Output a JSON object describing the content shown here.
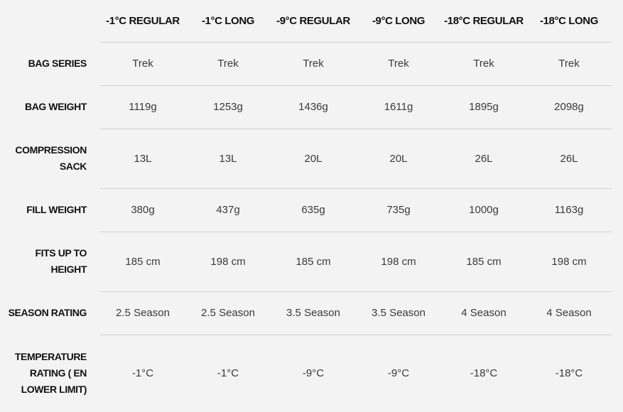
{
  "table": {
    "columns": [
      "-1°C REGULAR",
      "-1°C LONG",
      "-9°C REGULAR",
      "-9°C LONG",
      "-18°C REGULAR",
      "-18°C LONG"
    ],
    "rows": [
      {
        "label": "BAG SERIES",
        "cells": [
          "Trek",
          "Trek",
          "Trek",
          "Trek",
          "Trek",
          "Trek"
        ]
      },
      {
        "label": "BAG WEIGHT",
        "cells": [
          "1119g",
          "1253g",
          "1436g",
          "1611g",
          "1895g",
          "2098g"
        ]
      },
      {
        "label": "COMPRESSION SACK",
        "cells": [
          "13L",
          "13L",
          "20L",
          "20L",
          "26L",
          "26L"
        ]
      },
      {
        "label": "FILL WEIGHT",
        "cells": [
          "380g",
          "437g",
          "635g",
          "735g",
          "1000g",
          "1163g"
        ]
      },
      {
        "label": "FITS UP TO HEIGHT",
        "cells": [
          "185 cm",
          "198 cm",
          "185 cm",
          "198 cm",
          "185 cm",
          "198 cm"
        ]
      },
      {
        "label": "SEASON RATING",
        "cells": [
          "2.5 Season",
          "2.5 Season",
          "3.5 Season",
          "3.5 Season",
          "4 Season",
          "4 Season"
        ]
      },
      {
        "label": "TEMPERATURE RATING ( EN LOWER LIMIT)",
        "cells": [
          "-1°C",
          "-1°C",
          "-9°C",
          "-9°C",
          "-18°C",
          "-18°C"
        ]
      }
    ]
  }
}
